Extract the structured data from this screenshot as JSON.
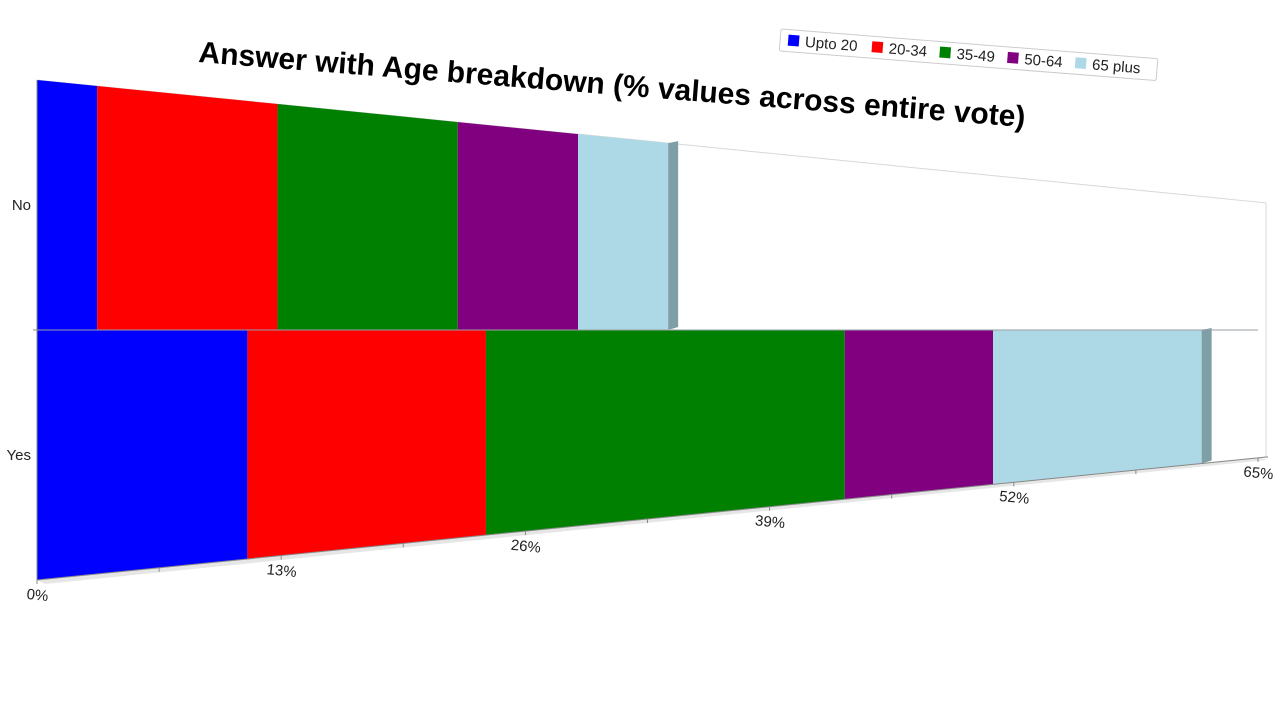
{
  "chart_data": {
    "type": "bar",
    "orientation": "horizontal",
    "stacked": true,
    "title": "Answer with Age breakdown (% values across entire vote)",
    "categories": [
      "No",
      "Yes"
    ],
    "x_ticks": [
      "0%",
      "13%",
      "26%",
      "39%",
      "52%",
      "65%"
    ],
    "xlim": [
      0,
      65
    ],
    "legend_position": "top-right",
    "series": [
      {
        "name": "Upto 20",
        "color": "#0000ff",
        "values": [
          3.2,
          11.2
        ]
      },
      {
        "name": "20-34",
        "color": "#ff0000",
        "values": [
          9.6,
          12.7
        ]
      },
      {
        "name": "35-49",
        "color": "#008000",
        "values": [
          9.6,
          19.1
        ]
      },
      {
        "name": "50-64",
        "color": "#800080",
        "values": [
          6.4,
          7.9
        ]
      },
      {
        "name": "65 plus",
        "color": "#add8e6",
        "values": [
          4.8,
          11.1
        ]
      }
    ]
  }
}
